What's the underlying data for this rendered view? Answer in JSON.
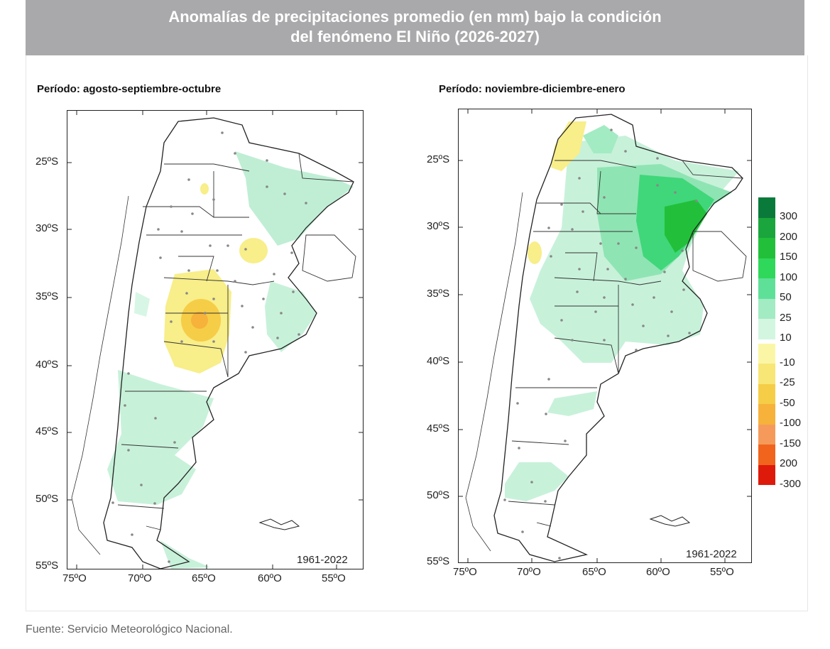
{
  "header": {
    "title_line1": "Anomalías de precipitaciones promedio (en mm) bajo la condición",
    "title_line2": "del fenómeno El Niño (2026-2027)"
  },
  "panels": [
    {
      "period_label": "Período: agosto-septiembre-octubre",
      "reference_period": "1961-2022",
      "lat_labels": [
        "25ºS",
        "30ºS",
        "35ºS",
        "40ºS",
        "45ºS",
        "50ºS",
        "55ºS"
      ],
      "lon_labels": [
        "75ºO",
        "70ºO",
        "65ºO",
        "60ºO",
        "55ºO"
      ]
    },
    {
      "period_label": "Período: noviembre-diciembre-enero",
      "reference_period": "1961-2022",
      "lat_labels": [
        "25ºS",
        "30ºS",
        "35ºS",
        "40ºS",
        "45ºS",
        "50ºS",
        "55ºS"
      ],
      "lon_labels": [
        "75ºO",
        "70ºO",
        "65ºO",
        "60ºO",
        "55ºO"
      ]
    }
  ],
  "legend": {
    "unit": "mm",
    "items": [
      {
        "label": "300",
        "color": "#0a7a3a"
      },
      {
        "label": "200",
        "color": "#1aa63c"
      },
      {
        "label": "150",
        "color": "#22c03a"
      },
      {
        "label": "100",
        "color": "#2fd85a"
      },
      {
        "label": "50",
        "color": "#5fe098"
      },
      {
        "label": "25",
        "color": "#a3ebc3"
      },
      {
        "label": "10",
        "color": "#d3f6e1"
      },
      {
        "label": "-10",
        "color": "#fbf6a6"
      },
      {
        "label": "-25",
        "color": "#f8e676"
      },
      {
        "label": "-50",
        "color": "#f6cd47"
      },
      {
        "label": "-100",
        "color": "#f6b23b"
      },
      {
        "label": "-150",
        "color": "#f59a5a"
      },
      {
        "label": "200",
        "color": "#f0641e"
      },
      {
        "label": "-300",
        "color": "#de1a0a"
      }
    ]
  },
  "source": "Fuente: Servicio Meteorológico Nacional."
}
